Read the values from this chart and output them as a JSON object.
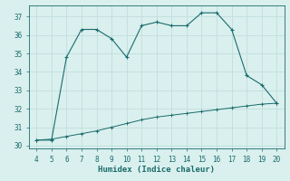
{
  "xlabel": "Humidex (Indice chaleur)",
  "bg_color": "#d9f0ee",
  "line_color": "#1a6b6b",
  "grid_color": "#c0dedd",
  "x_main": [
    4,
    5,
    6,
    7,
    8,
    9,
    10,
    11,
    12,
    13,
    14,
    15,
    16,
    17,
    18,
    19,
    20
  ],
  "y_main": [
    30.3,
    30.3,
    34.8,
    36.3,
    36.3,
    35.8,
    34.8,
    36.5,
    36.7,
    36.5,
    36.5,
    37.2,
    37.2,
    36.3,
    33.8,
    33.3,
    32.3
  ],
  "x_line2": [
    4,
    5,
    6,
    7,
    8,
    9,
    10,
    11,
    12,
    13,
    14,
    15,
    16,
    17,
    18,
    19,
    20
  ],
  "y_line2": [
    30.3,
    30.35,
    30.5,
    30.65,
    30.8,
    31.0,
    31.2,
    31.4,
    31.55,
    31.65,
    31.75,
    31.85,
    31.95,
    32.05,
    32.15,
    32.25,
    32.3
  ],
  "xlim": [
    3.5,
    20.5
  ],
  "ylim": [
    29.85,
    37.6
  ],
  "yticks": [
    30,
    31,
    32,
    33,
    34,
    35,
    36,
    37
  ],
  "xticks": [
    4,
    5,
    6,
    7,
    8,
    9,
    10,
    11,
    12,
    13,
    14,
    15,
    16,
    17,
    18,
    19,
    20
  ],
  "tick_fontsize": 5.5,
  "xlabel_fontsize": 6.5
}
